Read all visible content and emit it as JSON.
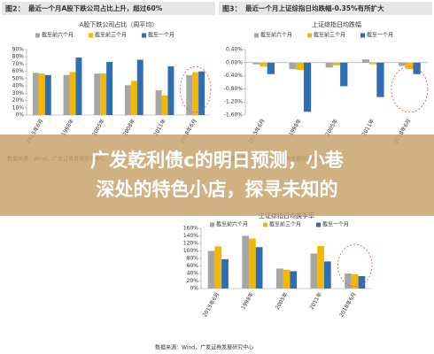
{
  "chart_data": [
    {
      "type": "bar",
      "figure_label": "图2：",
      "heading": "最近一个月A股下跌公司占比上升，超过60%",
      "title": "A股下跌公司占比（周平均）",
      "categories": [
        "2015年6月",
        "1998年",
        "2005年",
        "2008年",
        "2011年",
        "2018年6月"
      ],
      "series": [
        {
          "name": "截至前六个月",
          "color": "#a6a6a6",
          "values": [
            58,
            55,
            57,
            41,
            34,
            55
          ]
        },
        {
          "name": "截至前三个月",
          "color": "#f5b800",
          "values": [
            57,
            59,
            57,
            47,
            27,
            59
          ]
        },
        {
          "name": "截至一个月",
          "color": "#2e6eb5",
          "values": [
            55,
            79,
            73,
            76,
            67,
            60
          ]
        }
      ],
      "ylim": [
        0,
        90
      ],
      "yticks": [
        {
          "value": 0,
          "label": "0%"
        },
        {
          "value": 10,
          "label": "10%"
        },
        {
          "value": 20,
          "label": "20%"
        },
        {
          "value": 30,
          "label": "30%"
        },
        {
          "value": 40,
          "label": "40%"
        },
        {
          "value": 50,
          "label": "50%"
        },
        {
          "value": 60,
          "label": "60%"
        },
        {
          "value": 70,
          "label": "70%"
        },
        {
          "value": 80,
          "label": "80%"
        },
        {
          "value": 90,
          "label": "90%"
        }
      ],
      "source": "数据来源：Wind，广发证券发展研究中心"
    },
    {
      "type": "bar",
      "figure_label": "图3：",
      "heading": "最近一个月上证综指日均跌幅-0.35%有所扩大",
      "title": "上证综指日均跌幅",
      "categories": [
        "2015年6月",
        "1998年",
        "2005年",
        "2011年",
        "2018年6月"
      ],
      "series": [
        {
          "name": "截至前六个月",
          "color": "#a6a6a6",
          "values": [
            -0.05,
            -0.2,
            -0.15,
            0.1,
            -0.1
          ]
        },
        {
          "name": "截至前三个月",
          "color": "#f5b800",
          "values": [
            -0.12,
            -0.22,
            -0.08,
            -0.05,
            -0.2
          ]
        },
        {
          "name": "截至一个月",
          "color": "#2e6eb5",
          "values": [
            -0.35,
            -1.5,
            -0.72,
            -1.05,
            -0.35
          ]
        }
      ],
      "ylim": [
        -1.6,
        0.4
      ],
      "yticks": [
        {
          "value": -1.6,
          "label": "-1.60%"
        },
        {
          "value": -1.2,
          "label": "-1.20%"
        },
        {
          "value": -0.8,
          "label": "-0.80%"
        },
        {
          "value": -0.4,
          "label": "-0.40%"
        },
        {
          "value": 0,
          "label": "0.00%"
        },
        {
          "value": 0.4,
          "label": "0.40%"
        }
      ],
      "source": "数据来源：Wind，广发证券发展研究中心"
    },
    {
      "type": "bar",
      "title": "上证综指日均换手率",
      "categories": [
        "2015年6月",
        "1998年",
        "2005年",
        "2011年",
        "2018年6月"
      ],
      "series": [
        {
          "name": "截至前六个月",
          "color": "#a6a6a6",
          "values": [
            100,
            140,
            53,
            93,
            40
          ]
        },
        {
          "name": "截至前三个月",
          "color": "#f5b800",
          "values": [
            112,
            133,
            50,
            113,
            38
          ]
        },
        {
          "name": "截至一个月",
          "color": "#2e6eb5",
          "values": [
            78,
            110,
            46,
            72,
            33
          ]
        }
      ],
      "ylim": [
        0,
        160
      ],
      "yticks": [
        {
          "value": 0,
          "label": "0%"
        },
        {
          "value": 20,
          "label": "20%"
        },
        {
          "value": 40,
          "label": "40%"
        },
        {
          "value": 60,
          "label": "60%"
        },
        {
          "value": 80,
          "label": "80%"
        },
        {
          "value": 100,
          "label": "100%"
        },
        {
          "value": 120,
          "label": "120%"
        },
        {
          "value": 140,
          "label": "140%"
        },
        {
          "value": 160,
          "label": "160%"
        }
      ],
      "source": "数据来源：Wind，广发证券发展研究中心"
    }
  ],
  "banner": {
    "lines": [
      "广发乾利债c的明日预测，小巷",
      "深处的特色小店，探寻未知的"
    ]
  }
}
